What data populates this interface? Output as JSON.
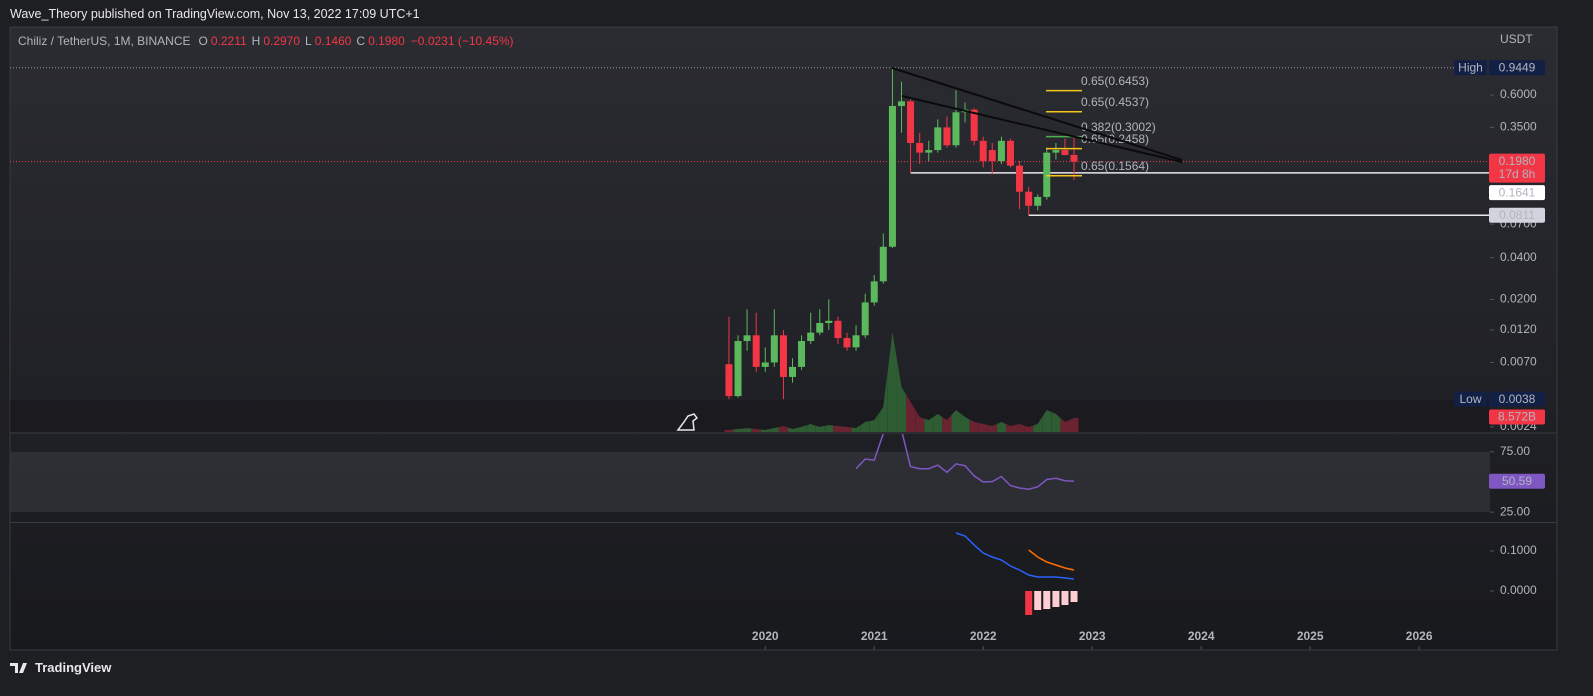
{
  "header": {
    "publisher": "Wave_Theory published on TradingView.com, Nov 13, 2022 17:09 UTC+1",
    "symbol": "Chiliz / TetherUS, 1M, BINANCE",
    "ohlc": [
      {
        "key": "O",
        "value": "0.2211"
      },
      {
        "key": "H",
        "value": "0.2970"
      },
      {
        "key": "L",
        "value": "0.1460"
      },
      {
        "key": "C",
        "value": "0.1980"
      }
    ],
    "change": "−0.0231 (−10.45%)",
    "currency": "USDT"
  },
  "footer": {
    "brand": "TradingView"
  },
  "chart_data": [
    {
      "type": "candlestick",
      "x": [
        2019.667,
        2019.75,
        2019.833,
        2019.917,
        2020,
        2020.083,
        2020.167,
        2020.25,
        2020.333,
        2020.417,
        2020.5,
        2020.583,
        2020.667,
        2020.75,
        2020.833,
        2020.917,
        2021,
        2021.083,
        2021.167,
        2021.25,
        2021.333,
        2021.417,
        2021.5,
        2021.583,
        2021.667,
        2021.75,
        2021.833,
        2021.917,
        2022,
        2022.083,
        2022.167,
        2022.25,
        2022.333,
        2022.417,
        2022.5,
        2022.583,
        2022.667,
        2022.75,
        2022.833
      ],
      "open": [
        0.0068,
        0.004,
        0.01,
        0.011,
        0.0065,
        0.007,
        0.011,
        0.0055,
        0.0065,
        0.01,
        0.0115,
        0.0135,
        0.014,
        0.0105,
        0.009,
        0.011,
        0.019,
        0.027,
        0.048,
        0.5,
        0.54,
        0.27,
        0.23,
        0.24,
        0.35,
        0.26,
        0.45,
        0.47,
        0.28,
        0.24,
        0.2,
        0.28,
        0.185,
        0.12,
        0.095,
        0.11,
        0.23,
        0.24,
        0.2211
      ],
      "high": [
        0.015,
        0.011,
        0.017,
        0.016,
        0.009,
        0.017,
        0.012,
        0.0075,
        0.011,
        0.016,
        0.017,
        0.02,
        0.015,
        0.0115,
        0.013,
        0.022,
        0.03,
        0.06,
        0.9449,
        0.75,
        0.56,
        0.32,
        0.28,
        0.4,
        0.42,
        0.65,
        0.53,
        0.48,
        0.3,
        0.27,
        0.3,
        0.29,
        0.2,
        0.13,
        0.115,
        0.25,
        0.27,
        0.29,
        0.297
      ],
      "low": [
        0.0038,
        0.0039,
        0.0085,
        0.006,
        0.006,
        0.0065,
        0.0038,
        0.005,
        0.0062,
        0.0095,
        0.011,
        0.012,
        0.0095,
        0.0085,
        0.0085,
        0.0105,
        0.018,
        0.026,
        0.047,
        0.32,
        0.1641,
        0.19,
        0.2,
        0.23,
        0.25,
        0.25,
        0.38,
        0.26,
        0.18,
        0.16,
        0.19,
        0.18,
        0.09,
        0.0811,
        0.088,
        0.105,
        0.205,
        0.22,
        0.146
      ],
      "close": [
        0.004,
        0.01,
        0.011,
        0.0065,
        0.007,
        0.011,
        0.0055,
        0.0065,
        0.01,
        0.0115,
        0.0135,
        0.014,
        0.0105,
        0.009,
        0.011,
        0.019,
        0.027,
        0.048,
        0.5,
        0.54,
        0.27,
        0.23,
        0.24,
        0.35,
        0.26,
        0.45,
        0.47,
        0.28,
        0.2,
        0.2,
        0.28,
        0.185,
        0.12,
        0.095,
        0.11,
        0.23,
        0.24,
        0.2211,
        0.198
      ],
      "up_color": "#5cb85c",
      "down_color": "#f23645",
      "xlim": [
        2013.07,
        2026.65
      ],
      "xticks": [
        2020,
        2021,
        2022,
        2023,
        2024,
        2025,
        2026
      ],
      "ylim": [
        0.0022,
        1.83
      ],
      "log_scale": true,
      "grid": false,
      "yticks": [
        {
          "value": 0.6,
          "label": "0.6000"
        },
        {
          "value": 0.35,
          "label": "0.3500"
        },
        {
          "value": 0.07,
          "label": "0.0700"
        },
        {
          "value": 0.04,
          "label": "0.0400"
        },
        {
          "value": 0.02,
          "label": "0.0200"
        },
        {
          "value": 0.012,
          "label": "0.0120"
        },
        {
          "value": 0.007,
          "label": "0.0070"
        },
        {
          "value": 0.0024,
          "label": "0.0024"
        }
      ],
      "markers": [
        {
          "label": "High",
          "value": 0.9449
        },
        {
          "label": "Low",
          "value": 0.0038
        }
      ],
      "last_price": {
        "value": 0.198,
        "label": "0.1980",
        "countdown": "17d 8h"
      },
      "levels": [
        0.1641,
        0.0811
      ],
      "fib_labels": [
        {
          "label": "0.65(0.6453)",
          "value": 0.6453,
          "color": "#f5c518"
        },
        {
          "label": "0.65(0.4537)",
          "value": 0.4537,
          "color": "#f5c518"
        },
        {
          "label": "0.382(0.3002)",
          "value": 0.3002,
          "color": "#4caf50"
        },
        {
          "label": "0.65(0.2458)",
          "value": 0.2458,
          "color": "#f5c518"
        },
        {
          "label": "0.65(0.1564)",
          "value": 0.1564,
          "color": "#f5c518"
        }
      ]
    },
    {
      "type": "area",
      "values": [
        1.2,
        1.8,
        2.4,
        1.8,
        1.2,
        2.4,
        3.7,
        1.8,
        3.1,
        4.9,
        3.1,
        4.3,
        3.7,
        3.1,
        2.4,
        6.1,
        7.3,
        15.3,
        61.2,
        27.5,
        18.4,
        9.2,
        7.3,
        11.0,
        7.3,
        13.5,
        9.2,
        6.1,
        4.9,
        3.7,
        6.1,
        3.7,
        4.9,
        3.1,
        4.9,
        13.5,
        11.0,
        6.1,
        8.572
      ],
      "last_label": {
        "value": 8.572,
        "label": "8.572B"
      },
      "up_color": "#2f5d33",
      "down_color": "#6b2331"
    },
    {
      "type": "line",
      "values": [
        null,
        null,
        null,
        null,
        null,
        null,
        null,
        null,
        null,
        null,
        null,
        null,
        null,
        null,
        61,
        69,
        68,
        90,
        95,
        93,
        62.7,
        61,
        61,
        64,
        58,
        65,
        63.5,
        55,
        50,
        50.4,
        54.5,
        47,
        45,
        44,
        46,
        52,
        53,
        51,
        50.59
      ],
      "color": "#7e57c2",
      "ylim": [
        16.8,
        89.75
      ],
      "yticks": [
        {
          "value": 75,
          "label": "75.00"
        },
        {
          "value": 25,
          "label": "25.00"
        }
      ]
    },
    {
      "type": "line",
      "series": [
        {
          "color": "#2962ff",
          "values": [
            null,
            null,
            null,
            null,
            null,
            null,
            null,
            null,
            null,
            null,
            null,
            null,
            null,
            null,
            null,
            null,
            null,
            null,
            null,
            null,
            null,
            null,
            null,
            null,
            null,
            0.145,
            0.1375,
            0.115,
            0.095,
            0.085,
            0.0775,
            0.0625,
            0.0525,
            0.04,
            0.035,
            0.035,
            0.035,
            0.0325,
            0.03
          ]
        },
        {
          "color": "#ff6d00",
          "values": [
            null,
            null,
            null,
            null,
            null,
            null,
            null,
            null,
            null,
            null,
            null,
            null,
            null,
            null,
            null,
            null,
            null,
            null,
            null,
            null,
            null,
            null,
            null,
            null,
            null,
            null,
            null,
            null,
            null,
            null,
            null,
            null,
            null,
            0.1025,
            0.085,
            0.0725,
            0.065,
            0.0575,
            0.0525
          ]
        }
      ],
      "histogram": {
        "color": "#f23645",
        "rising_color": "#ffcdd2",
        "values": [
          null,
          null,
          null,
          null,
          null,
          null,
          null,
          null,
          null,
          null,
          null,
          null,
          null,
          null,
          null,
          null,
          null,
          null,
          null,
          null,
          null,
          null,
          null,
          null,
          null,
          null,
          null,
          null,
          null,
          null,
          null,
          null,
          null,
          -0.06,
          -0.0475,
          -0.045,
          -0.04,
          -0.035,
          -0.0275
        ]
      },
      "ylim": [
        -0.1475,
        0.17
      ],
      "yticks": [
        {
          "value": 0.1,
          "label": "0.1000"
        },
        {
          "value": 0,
          "label": "0.0000"
        }
      ]
    }
  ]
}
